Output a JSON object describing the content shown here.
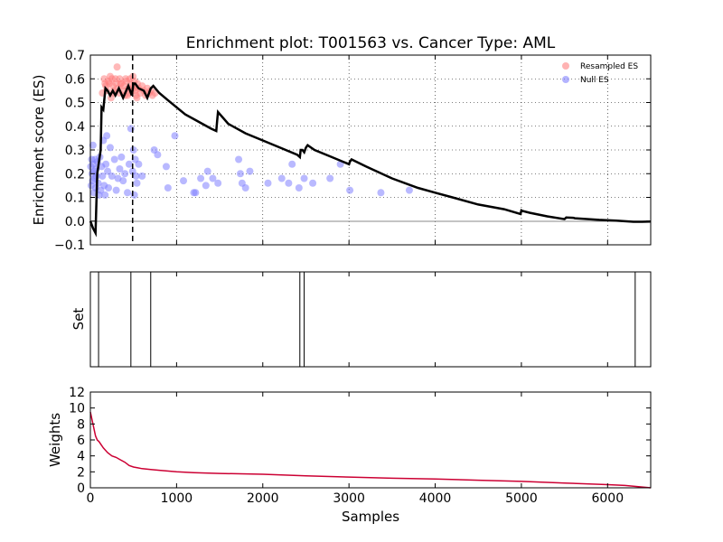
{
  "chart_data": [
    {
      "type": "scatter",
      "title": "Enrichment plot: T001563 vs. Cancer Type: AML",
      "xlabel": "",
      "ylabel": "Enrichment score (ES)",
      "xlim": [
        0,
        6500
      ],
      "ylim": [
        -0.1,
        0.7
      ],
      "yticks": [
        -0.1,
        0.0,
        0.1,
        0.2,
        0.3,
        0.4,
        0.5,
        0.6,
        0.7
      ],
      "ytick_labels": [
        "−0.1",
        "0.0",
        "0.1",
        "0.2",
        "0.3",
        "0.4",
        "0.5",
        "0.6",
        "0.7"
      ],
      "grid": true,
      "legend_position": "top-right",
      "legend": [
        {
          "label": "Resampled ES",
          "color": "#ff8080"
        },
        {
          "label": "Null ES",
          "color": "#8080ff"
        }
      ],
      "peak_marker_x": 490,
      "es_curve": {
        "color": "#000000",
        "x": [
          0,
          30,
          60,
          80,
          100,
          120,
          130,
          150,
          175,
          200,
          230,
          260,
          290,
          330,
          380,
          440,
          480,
          500,
          520,
          560,
          620,
          660,
          700,
          730,
          800,
          900,
          1000,
          1100,
          1200,
          1300,
          1400,
          1460,
          1470,
          1480,
          1600,
          1800,
          2000,
          2200,
          2400,
          2430,
          2440,
          2460,
          2480,
          2500,
          2520,
          2600,
          2800,
          3000,
          3010,
          3030,
          3200,
          3500,
          3800,
          4000,
          4200,
          4500,
          4800,
          4990,
          5000,
          5010,
          5100,
          5300,
          5500,
          5520,
          5600,
          5620,
          5700,
          5900,
          6100,
          6300,
          6400,
          6500
        ],
        "y": [
          0.0,
          -0.03,
          -0.05,
          0.2,
          0.25,
          0.3,
          0.48,
          0.47,
          0.56,
          0.55,
          0.53,
          0.55,
          0.53,
          0.56,
          0.52,
          0.57,
          0.53,
          0.58,
          0.58,
          0.56,
          0.55,
          0.52,
          0.56,
          0.57,
          0.54,
          0.51,
          0.48,
          0.45,
          0.43,
          0.41,
          0.39,
          0.38,
          0.42,
          0.46,
          0.41,
          0.37,
          0.34,
          0.31,
          0.28,
          0.27,
          0.3,
          0.3,
          0.29,
          0.31,
          0.32,
          0.3,
          0.27,
          0.24,
          0.25,
          0.26,
          0.23,
          0.18,
          0.14,
          0.12,
          0.1,
          0.07,
          0.05,
          0.03,
          0.045,
          0.043,
          0.035,
          0.02,
          0.008,
          0.015,
          0.014,
          0.012,
          0.01,
          0.005,
          0.002,
          -0.003,
          -0.003,
          -0.002
        ]
      },
      "series": [
        {
          "name": "Resampled ES",
          "color": "#ff8080",
          "x": [
            140,
            160,
            180,
            190,
            210,
            220,
            240,
            250,
            260,
            275,
            290,
            300,
            310,
            320,
            335,
            340,
            360,
            380,
            390,
            400,
            420,
            440,
            450,
            460,
            470,
            480,
            495,
            505,
            510,
            520,
            530,
            545,
            560,
            580,
            600,
            620,
            640,
            660,
            680,
            700,
            720,
            750,
            170,
            230,
            270,
            350,
            410,
            430,
            500,
            540
          ],
          "y": [
            0.54,
            0.6,
            0.57,
            0.55,
            0.59,
            0.58,
            0.52,
            0.6,
            0.57,
            0.55,
            0.6,
            0.58,
            0.65,
            0.56,
            0.54,
            0.6,
            0.58,
            0.55,
            0.57,
            0.53,
            0.59,
            0.56,
            0.54,
            0.6,
            0.58,
            0.55,
            0.61,
            0.57,
            0.59,
            0.55,
            0.53,
            0.58,
            0.56,
            0.54,
            0.57,
            0.55,
            0.53,
            0.56,
            0.54,
            0.55,
            0.53,
            0.54,
            0.58,
            0.61,
            0.54,
            0.58,
            0.6,
            0.53,
            0.56,
            0.52
          ]
        },
        {
          "name": "Null ES",
          "color": "#8080ff",
          "x": [
            5,
            10,
            15,
            20,
            25,
            30,
            35,
            40,
            45,
            50,
            55,
            60,
            65,
            70,
            80,
            90,
            100,
            110,
            120,
            130,
            140,
            150,
            160,
            170,
            180,
            190,
            200,
            210,
            230,
            250,
            280,
            300,
            320,
            340,
            360,
            380,
            400,
            430,
            450,
            470,
            490,
            500,
            510,
            520,
            530,
            540,
            560,
            600,
            740,
            780,
            880,
            900,
            980,
            1080,
            1200,
            1220,
            1280,
            1340,
            1360,
            1420,
            1480,
            1720,
            1740,
            1760,
            1800,
            1850,
            2060,
            2220,
            2300,
            2340,
            2420,
            2480,
            2580,
            2780,
            2900,
            3010,
            3370,
            3700
          ],
          "y": [
            0.23,
            0.15,
            0.26,
            0.2,
            0.17,
            0.32,
            0.24,
            0.12,
            0.21,
            0.18,
            0.26,
            0.14,
            0.22,
            0.19,
            0.25,
            0.16,
            0.11,
            0.27,
            0.13,
            0.23,
            0.19,
            0.34,
            0.15,
            0.11,
            0.24,
            0.36,
            0.21,
            0.14,
            0.31,
            0.19,
            0.26,
            0.13,
            0.18,
            0.22,
            0.27,
            0.17,
            0.2,
            0.12,
            0.24,
            0.39,
            0.21,
            0.3,
            0.11,
            0.26,
            0.19,
            0.16,
            0.24,
            0.19,
            0.3,
            0.28,
            0.23,
            0.14,
            0.36,
            0.17,
            0.12,
            0.12,
            0.18,
            0.15,
            0.21,
            0.18,
            0.16,
            0.26,
            0.2,
            0.16,
            0.14,
            0.21,
            0.16,
            0.18,
            0.16,
            0.24,
            0.14,
            0.18,
            0.16,
            0.18,
            0.24,
            0.13,
            0.12,
            0.13
          ]
        }
      ]
    },
    {
      "type": "line",
      "title": "",
      "xlabel": "",
      "ylabel": "Set",
      "xlim": [
        0,
        6500
      ],
      "hits_x": [
        95,
        470,
        700,
        2430,
        2480,
        6320
      ],
      "line_color": "#000000"
    },
    {
      "type": "line",
      "title": "",
      "xlabel": "Samples",
      "ylabel": "Weights",
      "xlim": [
        0,
        6500
      ],
      "ylim": [
        0,
        12
      ],
      "xticks": [
        0,
        1000,
        2000,
        3000,
        4000,
        5000,
        6000
      ],
      "xtick_labels": [
        "0",
        "1000",
        "2000",
        "3000",
        "4000",
        "5000",
        "6000"
      ],
      "yticks": [
        0,
        2,
        4,
        6,
        8,
        10,
        12
      ],
      "ytick_labels": [
        "0",
        "2",
        "4",
        "6",
        "8",
        "10",
        "12"
      ],
      "series": [
        {
          "color": "#cc0033",
          "x": [
            0,
            20,
            40,
            60,
            80,
            100,
            150,
            200,
            250,
            300,
            350,
            400,
            450,
            500,
            550,
            600,
            700,
            800,
            1000,
            1200,
            1500,
            2000,
            2500,
            3000,
            3500,
            4000,
            4500,
            5000,
            5500,
            6000,
            6200,
            6400,
            6500
          ],
          "y": [
            9.5,
            8.5,
            7.5,
            6.5,
            6.0,
            5.8,
            5.0,
            4.4,
            4.0,
            3.8,
            3.5,
            3.2,
            2.8,
            2.6,
            2.5,
            2.4,
            2.3,
            2.2,
            2.0,
            1.9,
            1.8,
            1.7,
            1.5,
            1.35,
            1.2,
            1.1,
            0.95,
            0.8,
            0.6,
            0.4,
            0.3,
            0.1,
            0.0
          ]
        }
      ]
    }
  ]
}
